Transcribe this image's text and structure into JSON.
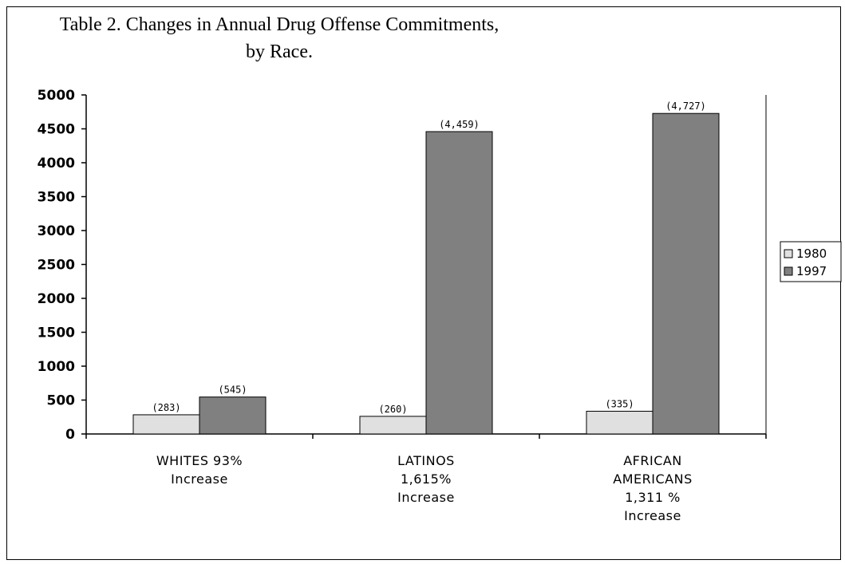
{
  "chart_data": {
    "type": "bar",
    "title_line1": "Table 2.  Changes in Annual Drug Offense Commitments,",
    "title_line2": "by Race.",
    "categories": [
      [
        "WHITES 93%",
        "Increase"
      ],
      [
        "LATINOS",
        "1,615%",
        "Increase"
      ],
      [
        "AFRICAN",
        "AMERICANS",
        "1,311 %",
        "Increase"
      ]
    ],
    "series": [
      {
        "name": "1980",
        "values": [
          283,
          260,
          335
        ],
        "labels": [
          "(283)",
          "(260)",
          "(335)"
        ],
        "color": "#e0e0e0"
      },
      {
        "name": "1997",
        "values": [
          545,
          4459,
          4727
        ],
        "labels": [
          "(545)",
          "(4,459)",
          "(4,727)"
        ],
        "color": "#808080"
      }
    ],
    "yticks": [
      0,
      500,
      1000,
      1500,
      2000,
      2500,
      3000,
      3500,
      4000,
      4500,
      5000
    ],
    "ylim": [
      0,
      5000
    ],
    "legend_position": "right",
    "grid": false
  }
}
